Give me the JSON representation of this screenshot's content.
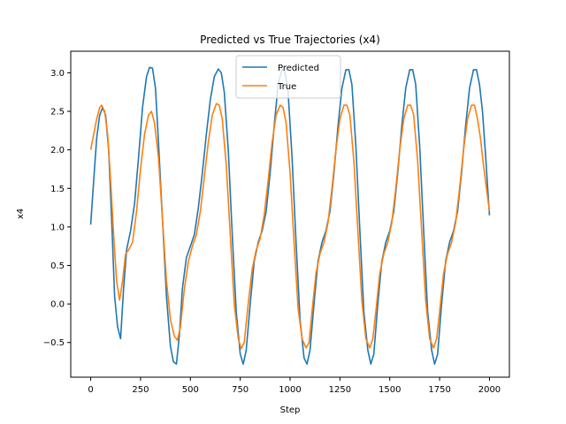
{
  "chart_data": {
    "type": "line",
    "title": "Predicted vs True Trajectories (x4)",
    "xlabel": "Step",
    "ylabel": "x4",
    "xlim": [
      -100,
      2100
    ],
    "ylim": [
      -0.95,
      3.28
    ],
    "xticks": [
      0,
      250,
      500,
      750,
      1000,
      1250,
      1500,
      1750,
      2000
    ],
    "yticks": [
      -0.5,
      0.0,
      0.5,
      1.0,
      1.5,
      2.0,
      2.5,
      3.0
    ],
    "xtick_labels": [
      "0",
      "250",
      "500",
      "750",
      "1000",
      "1250",
      "1500",
      "1750",
      "2000"
    ],
    "ytick_labels": [
      "−0.5",
      "0.0",
      "0.5",
      "1.0",
      "1.5",
      "2.0",
      "2.5",
      "3.0"
    ],
    "grid": false,
    "legend": "top-center",
    "series": [
      {
        "name": "Predicted",
        "color": "#1f77b4",
        "x": [
          0,
          15,
          30,
          45,
          60,
          75,
          90,
          105,
          120,
          135,
          150,
          165,
          180,
          200,
          220,
          240,
          260,
          280,
          295,
          310,
          325,
          340,
          360,
          380,
          400,
          415,
          430,
          445,
          460,
          480,
          500,
          520,
          540,
          560,
          580,
          600,
          620,
          640,
          655,
          670,
          690,
          710,
          730,
          750,
          765,
          780,
          800,
          820,
          840,
          860,
          880,
          900,
          920,
          940,
          960,
          975,
          990,
          1010,
          1030,
          1050,
          1070,
          1085,
          1100,
          1120,
          1140,
          1160,
          1180,
          1200,
          1220,
          1240,
          1260,
          1280,
          1295,
          1310,
          1330,
          1350,
          1370,
          1390,
          1405,
          1420,
          1440,
          1460,
          1480,
          1500,
          1520,
          1540,
          1560,
          1580,
          1600,
          1615,
          1630,
          1650,
          1670,
          1690,
          1710,
          1725,
          1740,
          1760,
          1780,
          1800,
          1820,
          1840,
          1860,
          1880,
          1900,
          1920,
          1935,
          1950,
          1965,
          1980,
          2000
        ],
        "y": [
          1.03,
          1.6,
          2.15,
          2.45,
          2.55,
          2.45,
          2.0,
          1.1,
          0.1,
          -0.3,
          -0.45,
          0.2,
          0.7,
          0.95,
          1.3,
          1.9,
          2.55,
          2.95,
          3.07,
          3.06,
          2.8,
          2.1,
          1.1,
          0.1,
          -0.55,
          -0.75,
          -0.78,
          -0.4,
          0.2,
          0.6,
          0.75,
          0.9,
          1.25,
          1.7,
          2.2,
          2.65,
          2.95,
          3.05,
          3.0,
          2.75,
          2.0,
          0.9,
          -0.1,
          -0.65,
          -0.78,
          -0.6,
          0.0,
          0.55,
          0.8,
          0.95,
          1.2,
          1.7,
          2.3,
          2.85,
          3.05,
          3.0,
          2.75,
          1.9,
          0.8,
          -0.2,
          -0.7,
          -0.78,
          -0.6,
          0.0,
          0.55,
          0.8,
          0.95,
          1.2,
          1.7,
          2.3,
          2.8,
          3.04,
          3.04,
          2.85,
          2.05,
          0.95,
          -0.1,
          -0.6,
          -0.78,
          -0.65,
          0.0,
          0.55,
          0.8,
          0.95,
          1.2,
          1.7,
          2.3,
          2.8,
          3.04,
          3.04,
          2.85,
          2.05,
          0.95,
          -0.1,
          -0.6,
          -0.78,
          -0.65,
          0.0,
          0.55,
          0.8,
          0.95,
          1.2,
          1.7,
          2.3,
          2.8,
          3.04,
          3.04,
          2.85,
          2.5,
          1.95,
          1.15
        ]
      },
      {
        "name": "True",
        "color": "#ff7f0e",
        "x": [
          0,
          15,
          30,
          45,
          55,
          70,
          85,
          100,
          115,
          130,
          145,
          160,
          175,
          190,
          210,
          230,
          250,
          270,
          290,
          305,
          320,
          340,
          360,
          380,
          400,
          420,
          435,
          450,
          470,
          490,
          510,
          530,
          550,
          570,
          590,
          610,
          630,
          645,
          660,
          680,
          700,
          720,
          740,
          755,
          770,
          790,
          810,
          830,
          850,
          870,
          890,
          910,
          930,
          950,
          965,
          980,
          1000,
          1020,
          1040,
          1060,
          1080,
          1095,
          1110,
          1130,
          1150,
          1170,
          1190,
          1210,
          1230,
          1250,
          1270,
          1285,
          1300,
          1320,
          1340,
          1360,
          1380,
          1400,
          1415,
          1430,
          1450,
          1470,
          1490,
          1510,
          1530,
          1550,
          1570,
          1590,
          1605,
          1620,
          1640,
          1660,
          1680,
          1700,
          1720,
          1735,
          1750,
          1770,
          1790,
          1810,
          1830,
          1850,
          1870,
          1890,
          1910,
          1925,
          1940,
          1955,
          1970,
          1985,
          2000
        ],
        "y": [
          2.0,
          2.2,
          2.4,
          2.55,
          2.58,
          2.5,
          2.2,
          1.6,
          0.9,
          0.3,
          0.05,
          0.3,
          0.65,
          0.7,
          0.8,
          1.2,
          1.75,
          2.2,
          2.45,
          2.5,
          2.35,
          1.9,
          1.1,
          0.3,
          -0.2,
          -0.42,
          -0.47,
          -0.3,
          0.2,
          0.55,
          0.75,
          0.9,
          1.2,
          1.65,
          2.1,
          2.45,
          2.6,
          2.58,
          2.4,
          1.8,
          0.9,
          0.0,
          -0.45,
          -0.58,
          -0.5,
          0.0,
          0.45,
          0.7,
          0.85,
          1.15,
          1.6,
          2.1,
          2.45,
          2.58,
          2.55,
          2.35,
          1.7,
          0.8,
          -0.05,
          -0.45,
          -0.57,
          -0.5,
          -0.1,
          0.4,
          0.65,
          0.8,
          1.05,
          1.5,
          2.0,
          2.4,
          2.58,
          2.58,
          2.45,
          1.85,
          0.95,
          0.05,
          -0.45,
          -0.57,
          -0.45,
          -0.1,
          0.4,
          0.65,
          0.8,
          1.05,
          1.5,
          2.0,
          2.4,
          2.58,
          2.58,
          2.45,
          1.85,
          0.95,
          0.05,
          -0.45,
          -0.57,
          -0.45,
          -0.1,
          0.4,
          0.65,
          0.8,
          1.05,
          1.5,
          2.0,
          2.4,
          2.58,
          2.58,
          2.4,
          2.15,
          1.8,
          1.5,
          1.2
        ]
      }
    ]
  }
}
